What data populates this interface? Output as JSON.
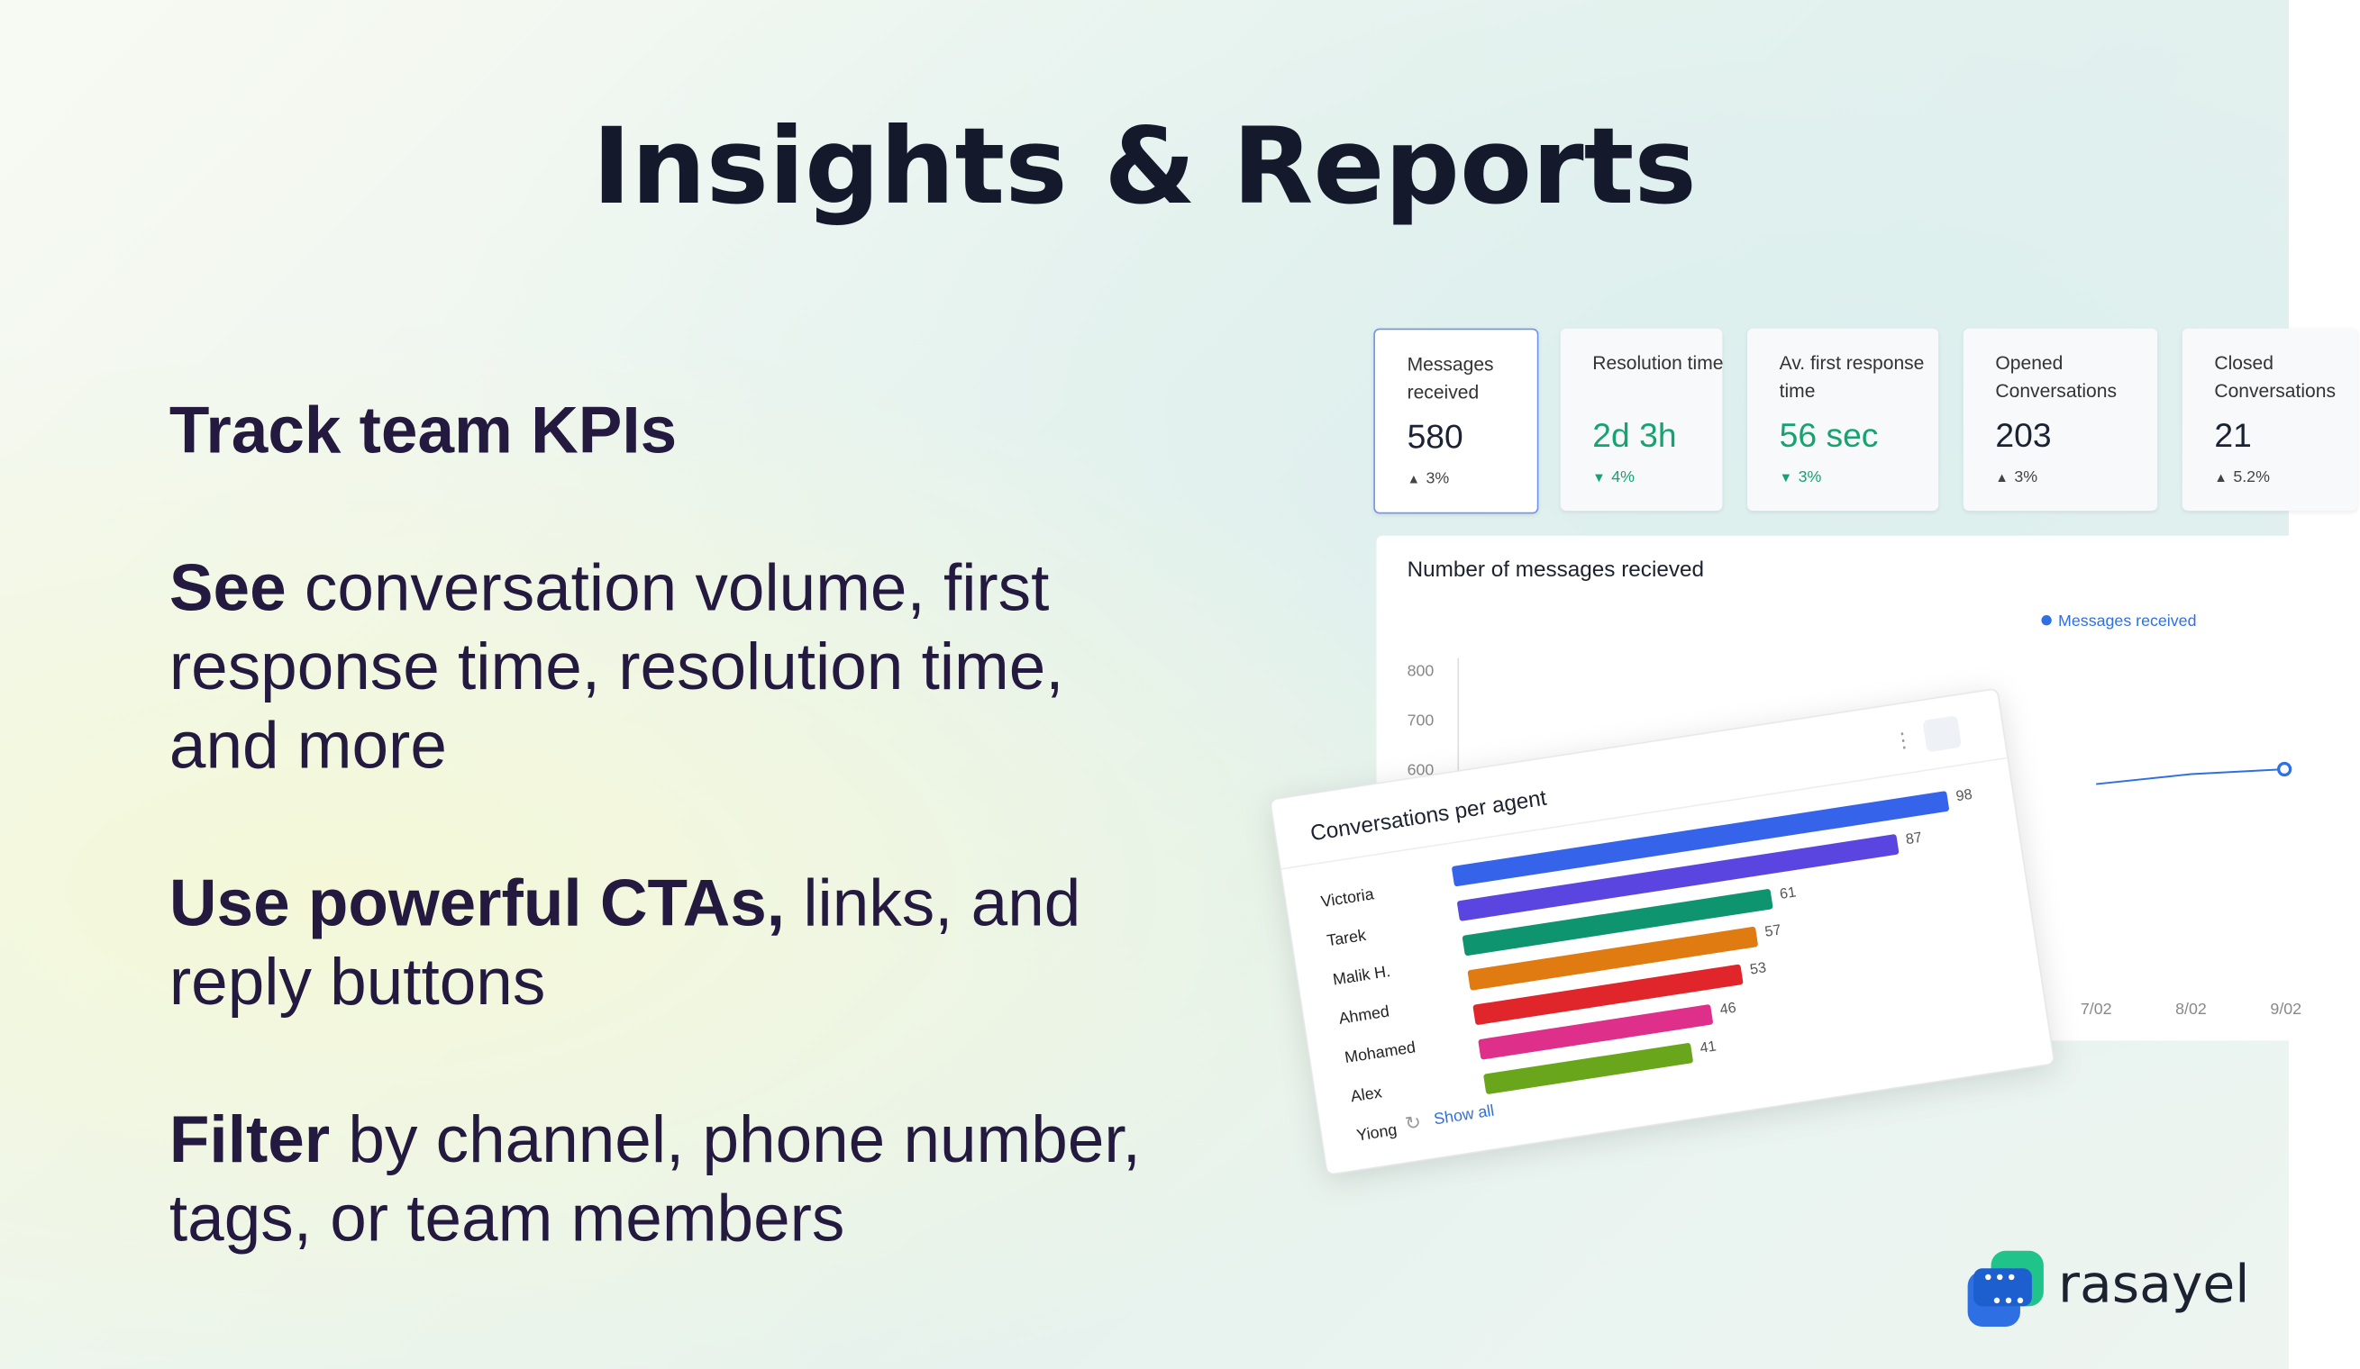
{
  "header": {
    "title": "Insights & Reports"
  },
  "features": [
    {
      "bold": "Track team KPIs"
    },
    {
      "bold": "See",
      "text": "conversation volume, first response time, resolution time, and more"
    },
    {
      "bold": "Use powerful CTAs,",
      "text": "links, and reply buttons"
    },
    {
      "bold": "Filter",
      "text": "by channel, phone number, tags, or team members"
    }
  ],
  "kpis": [
    {
      "label": "Messages received",
      "value": "580",
      "change": "3%",
      "direction": "up",
      "color": "#1b2233"
    },
    {
      "label": "Resolution time",
      "value": "2d 3h",
      "change": "4%",
      "direction": "down",
      "color": "#16a36f"
    },
    {
      "label": "Av. first response time",
      "value": "56 sec",
      "change": "3%",
      "direction": "down",
      "color": "#16a36f"
    },
    {
      "label": "Opened Conversations",
      "value": "203",
      "change": "3%",
      "direction": "up",
      "color": "#1b2233"
    },
    {
      "label": "Closed Conversations",
      "value": "21",
      "change": "5.2%",
      "direction": "up",
      "color": "#1b2233"
    }
  ],
  "chart_data": [
    {
      "type": "line",
      "title": "Number of messages recieved",
      "categories": [
        "7/02",
        "8/02",
        "9/02"
      ],
      "series": [
        {
          "name": "Messages received",
          "color": "#2f6fe4",
          "values": [
            570,
            590,
            600
          ]
        }
      ],
      "ylim": [
        200,
        800
      ],
      "yticks": [
        600,
        700,
        800
      ]
    },
    {
      "type": "bar",
      "title": "Conversations per agent",
      "categories": [
        "Victoria",
        "Tarek",
        "Malik H.",
        "Ahmed",
        "Mohamed",
        "Alex",
        "Yiong"
      ],
      "values": [
        98,
        87,
        61,
        57,
        53,
        46,
        41
      ],
      "colors": [
        "#3563e9",
        "#5b45e0",
        "#0f9470",
        "#e07b12",
        "#e0262b",
        "#de2f8a",
        "#6aa61b"
      ],
      "xlim": [
        0,
        100
      ],
      "link": "Show all"
    }
  ],
  "brand": "rasayel"
}
